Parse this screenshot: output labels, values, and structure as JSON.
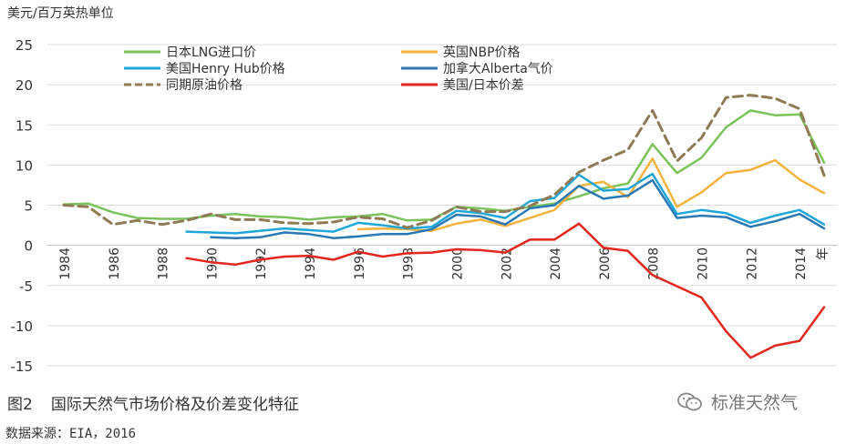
{
  "chart_data": {
    "type": "line",
    "ylabel": "美元/百万英热单位",
    "x_unit_label": "年",
    "ylim": [
      -15,
      25
    ],
    "yticks": [
      25,
      20,
      15,
      10,
      5,
      0,
      -5,
      -10,
      -15
    ],
    "xlim": [
      1984,
      2015
    ],
    "xticks": [
      "1984",
      "1986",
      "1988",
      "1990",
      "1992",
      "1994",
      "1996",
      "1998",
      "2000",
      "2002",
      "2004",
      "2006",
      "2008",
      "2010",
      "2012",
      "2014"
    ],
    "grid": "horizontal",
    "legend_position": "top",
    "x": [
      1984,
      1985,
      1986,
      1987,
      1988,
      1989,
      1990,
      1991,
      1992,
      1993,
      1994,
      1995,
      1996,
      1997,
      1998,
      1999,
      2000,
      2001,
      2002,
      2003,
      2004,
      2005,
      2006,
      2007,
      2008,
      2009,
      2010,
      2011,
      2012,
      2013,
      2014,
      2015
    ],
    "series": [
      {
        "name": "日本LNG进口价",
        "color": "#7ac35a",
        "dash": false,
        "values": [
          5.1,
          5.2,
          4.1,
          3.4,
          3.3,
          3.3,
          3.7,
          3.9,
          3.6,
          3.5,
          3.2,
          3.5,
          3.6,
          3.9,
          3.1,
          3.2,
          4.8,
          4.6,
          4.3,
          4.8,
          5.2,
          6.1,
          7.1,
          7.7,
          12.6,
          9.0,
          10.9,
          14.7,
          16.8,
          16.2,
          16.3,
          10.3
        ]
      },
      {
        "name": "英国NBP价格",
        "color": "#f4b33f",
        "dash": false,
        "values": [
          null,
          null,
          null,
          null,
          null,
          null,
          null,
          null,
          null,
          null,
          null,
          null,
          2.0,
          2.1,
          2.0,
          1.8,
          2.7,
          3.2,
          2.4,
          3.4,
          4.4,
          7.4,
          7.9,
          6.0,
          10.8,
          4.8,
          6.6,
          9.0,
          9.4,
          10.6,
          8.2,
          6.5
        ]
      },
      {
        "name": "美国Henry Hub价格",
        "color": "#1fa7d9",
        "dash": false,
        "values": [
          null,
          null,
          null,
          null,
          null,
          1.7,
          1.6,
          1.5,
          1.8,
          2.1,
          1.9,
          1.7,
          2.8,
          2.5,
          2.1,
          2.3,
          4.3,
          4.0,
          3.4,
          5.5,
          5.9,
          8.8,
          6.8,
          7.0,
          8.9,
          3.9,
          4.4,
          4.0,
          2.8,
          3.7,
          4.4,
          2.6
        ]
      },
      {
        "name": "加拿大Alberta气价",
        "color": "#2b79b4",
        "dash": false,
        "values": [
          null,
          null,
          null,
          null,
          null,
          null,
          1.0,
          0.9,
          1.0,
          1.6,
          1.4,
          0.9,
          1.1,
          1.4,
          1.4,
          2.0,
          3.8,
          3.6,
          2.6,
          4.6,
          5.0,
          7.4,
          5.8,
          6.2,
          8.1,
          3.4,
          3.7,
          3.5,
          2.3,
          3.0,
          3.9,
          2.1
        ]
      },
      {
        "name": "同期原油价格",
        "color": "#8e7a55",
        "dash": true,
        "values": [
          5.0,
          4.8,
          2.6,
          3.1,
          2.6,
          3.1,
          3.9,
          3.2,
          3.2,
          2.8,
          2.7,
          2.9,
          3.5,
          3.3,
          2.2,
          3.1,
          4.8,
          4.2,
          4.2,
          4.9,
          6.3,
          9.1,
          10.6,
          11.9,
          16.8,
          10.5,
          13.4,
          18.4,
          18.7,
          18.3,
          17.0,
          8.7
        ]
      },
      {
        "name": "美国/日本价差",
        "color": "#e3261e",
        "dash": false,
        "values": [
          null,
          null,
          null,
          null,
          null,
          -1.6,
          -2.1,
          -2.4,
          -1.8,
          -1.4,
          -1.3,
          -1.8,
          -0.8,
          -1.4,
          -1.0,
          -0.9,
          -0.5,
          -0.6,
          -0.9,
          0.7,
          0.7,
          2.7,
          -0.3,
          -0.7,
          -3.7,
          -5.1,
          -6.5,
          -10.7,
          -14.0,
          -12.5,
          -11.9,
          -7.7
        ]
      }
    ]
  },
  "caption": {
    "number": "图2",
    "text": "国际天然气市场价格及价差变化特征"
  },
  "source": "数据来源：EIA，2016",
  "watermark": {
    "text": "标准天然气",
    "icon": "wechat-icon"
  }
}
